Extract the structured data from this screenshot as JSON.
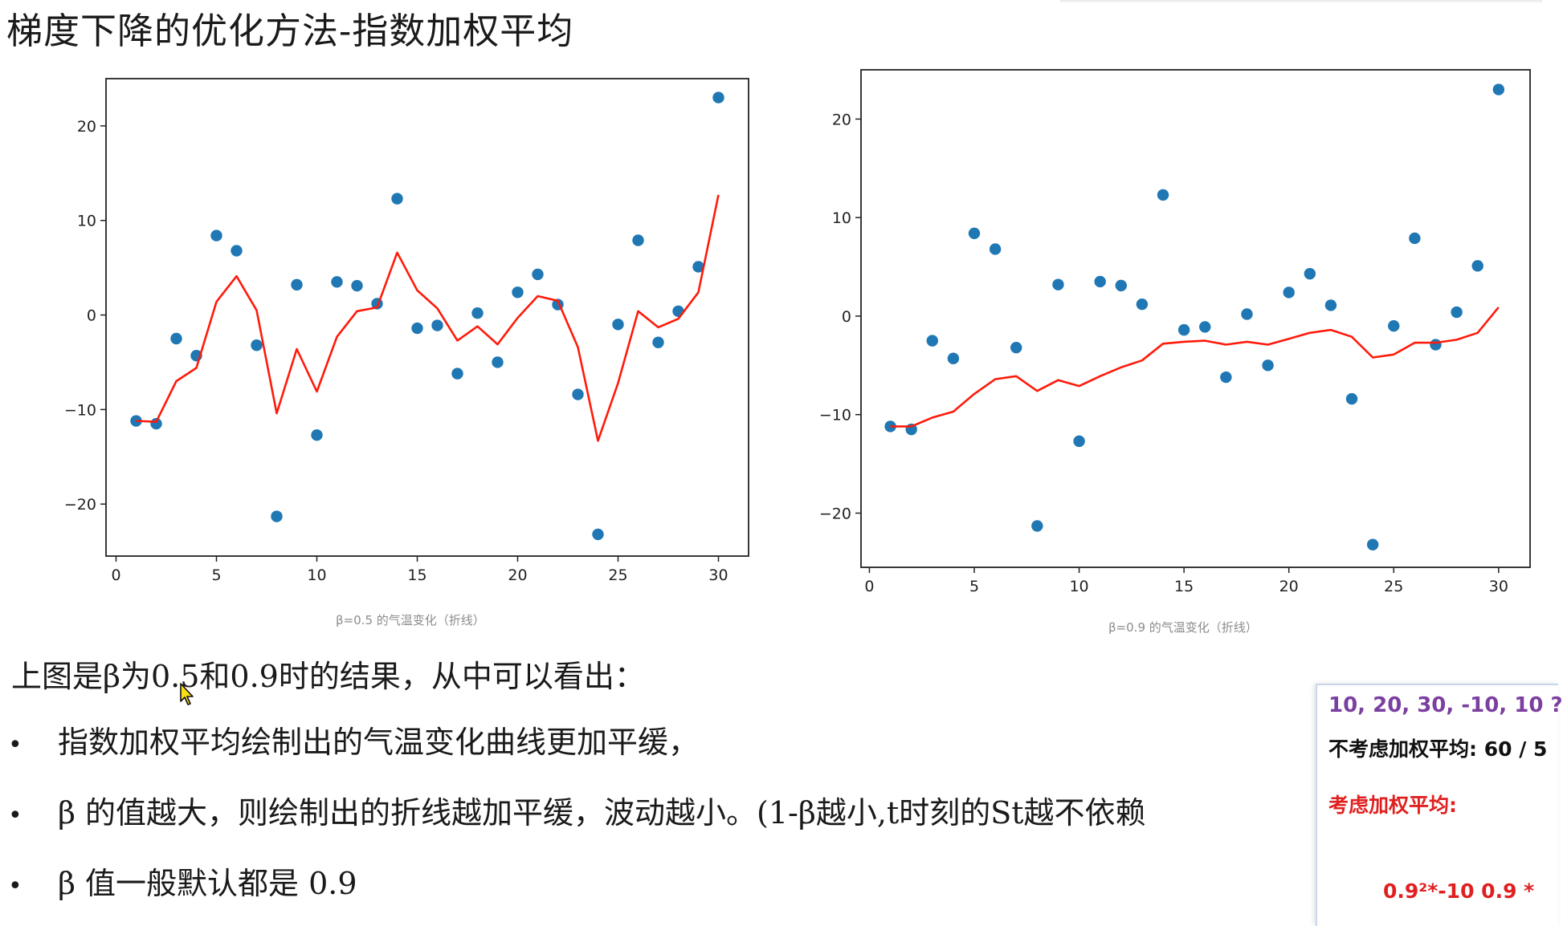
{
  "slide": {
    "title": "梯度下降的优化方法-指数加权平均",
    "caption_left": "β=0.5 的气温变化（折线）",
    "caption_right": "β=0.9 的气温变化（折线）",
    "intro": "上图是β为0.5和0.9时的结果，从中可以看出：",
    "bullets": [
      "指数加权平均绘制出的气温变化曲线更加平缓，",
      "β 的值越大，则绘制出的折线越加平缓，波动越小。(1-β越小,t时刻的St越不依赖",
      "β 值一般默认都是 0.9"
    ],
    "bullet_symbol": "•"
  },
  "popup": {
    "sequence": "10, 20, 30, -10, 10  ?",
    "plain_average": "不考虑加权平均: 60 / 5",
    "weighted_label": "考虑加权平均:",
    "formula": "0.9²*-10   0.9 *"
  },
  "colors": {
    "points": "#1f77b4",
    "ema_line": "#ff1a0a",
    "popup_sequence": "#7b3fa0",
    "popup_red": "#e02020"
  },
  "cursor_icon": "mouse-pointer-icon",
  "chart_data": [
    {
      "type": "scatter+line",
      "title": "β=0.5 的气温变化（折线）",
      "beta": 0.5,
      "x": [
        1,
        2,
        3,
        4,
        5,
        6,
        7,
        8,
        9,
        10,
        11,
        12,
        13,
        14,
        15,
        16,
        17,
        18,
        19,
        20,
        21,
        22,
        23,
        24,
        25,
        26,
        27,
        28,
        29,
        30
      ],
      "temps": [
        -11.2,
        -11.5,
        -2.5,
        -4.3,
        8.4,
        6.8,
        -3.2,
        -21.3,
        3.2,
        -12.7,
        3.5,
        3.1,
        1.2,
        12.3,
        -1.4,
        -1.1,
        -6.2,
        0.2,
        -5.0,
        2.4,
        4.3,
        1.1,
        -8.4,
        -23.2,
        -1.0,
        7.9,
        -2.9,
        0.4,
        5.1,
        23.0
      ],
      "ema": [
        -11.2,
        -11.3,
        -7.0,
        -5.6,
        1.4,
        4.1,
        0.5,
        -10.4,
        -3.6,
        -8.1,
        -2.3,
        0.4,
        0.8,
        6.6,
        2.6,
        0.7,
        -2.7,
        -1.2,
        -3.1,
        -0.3,
        2.0,
        1.5,
        -3.4,
        -13.3,
        -7.2,
        0.4,
        -1.3,
        -0.4,
        2.4,
        12.7
      ],
      "xlim": [
        -0.5,
        31.5
      ],
      "ylim": [
        -25.5,
        25
      ],
      "xticks": [
        0,
        5,
        10,
        15,
        20,
        25,
        30
      ],
      "yticks": [
        -20,
        -10,
        0,
        10,
        20
      ],
      "ytick_labels": [
        "−20",
        "−10",
        "0",
        "10",
        "20"
      ],
      "series": [
        {
          "name": "气温",
          "style": "scatter"
        },
        {
          "name": "指数加权平均",
          "style": "line"
        }
      ]
    },
    {
      "type": "scatter+line",
      "title": "β=0.9 的气温变化（折线）",
      "beta": 0.9,
      "x": [
        1,
        2,
        3,
        4,
        5,
        6,
        7,
        8,
        9,
        10,
        11,
        12,
        13,
        14,
        15,
        16,
        17,
        18,
        19,
        20,
        21,
        22,
        23,
        24,
        25,
        26,
        27,
        28,
        29,
        30
      ],
      "temps": [
        -11.2,
        -11.5,
        -2.5,
        -4.3,
        8.4,
        6.8,
        -3.2,
        -21.3,
        3.2,
        -12.7,
        3.5,
        3.1,
        1.2,
        12.3,
        -1.4,
        -1.1,
        -6.2,
        0.2,
        -5.0,
        2.4,
        4.3,
        1.1,
        -8.4,
        -23.2,
        -1.0,
        7.9,
        -2.9,
        0.4,
        5.1,
        23.0
      ],
      "ema": [
        -11.2,
        -11.2,
        -10.3,
        -9.7,
        -7.9,
        -6.4,
        -6.1,
        -7.6,
        -6.5,
        -7.1,
        -6.1,
        -5.2,
        -4.5,
        -2.8,
        -2.6,
        -2.5,
        -2.9,
        -2.6,
        -2.9,
        -2.3,
        -1.7,
        -1.4,
        -2.1,
        -4.2,
        -3.9,
        -2.7,
        -2.7,
        -2.4,
        -1.7,
        0.9
      ],
      "xlim": [
        -0.4,
        31.5
      ],
      "ylim": [
        -25.5,
        25
      ],
      "xticks": [
        0,
        5,
        10,
        15,
        20,
        25,
        30
      ],
      "yticks": [
        -20,
        -10,
        0,
        10,
        20
      ],
      "ytick_labels": [
        "−20",
        "−10",
        "0",
        "10",
        "20"
      ],
      "series": [
        {
          "name": "气温",
          "style": "scatter"
        },
        {
          "name": "指数加权平均",
          "style": "line"
        }
      ]
    }
  ]
}
